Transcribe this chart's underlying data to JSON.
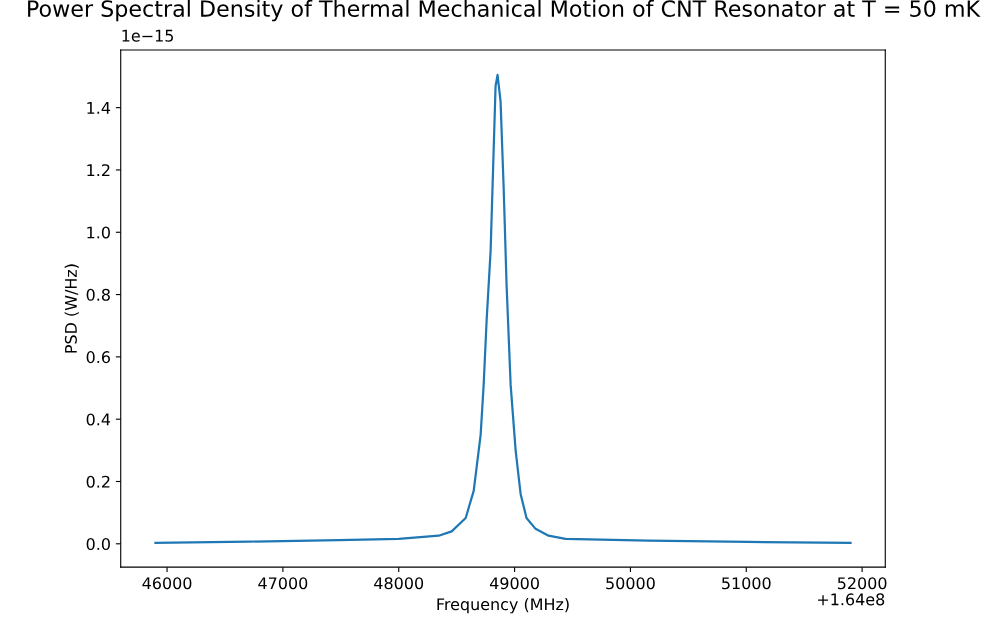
{
  "chart_data": {
    "type": "line",
    "title": "Power Spectral Density of Thermal Mechanical Motion of CNT Resonator at T = 50 mK",
    "xlabel": "Frequency (MHz)",
    "ylabel": "PSD (W/Hz)",
    "annotations": [
      "1e−15",
      "+1.64e8"
    ],
    "x": [
      45900,
      46710,
      47480,
      48000,
      48345,
      48457,
      48578,
      48647,
      48707,
      48733,
      48759,
      48793,
      48819,
      48836,
      48853,
      48879,
      48905,
      48931,
      48966,
      49009,
      49052,
      49103,
      49181,
      49293,
      49440,
      50155,
      51017,
      51900
    ],
    "series": [
      {
        "color": "#1f77b4",
        "values": [
          0.003,
          0.007,
          0.012,
          0.016,
          0.026,
          0.04,
          0.083,
          0.17,
          0.35,
          0.51,
          0.72,
          0.94,
          1.26,
          1.47,
          1.505,
          1.42,
          1.15,
          0.83,
          0.51,
          0.3,
          0.16,
          0.083,
          0.048,
          0.026,
          0.016,
          0.01,
          0.006,
          0.003
        ]
      }
    ],
    "xlim": [
      45600,
      52200
    ],
    "xticks": [
      46000,
      47000,
      48000,
      49000,
      50000,
      51000,
      52000
    ],
    "ylim": [
      -0.075,
      1.585
    ],
    "yticks": [
      {
        "value": 0,
        "label": "0.0"
      },
      0.2,
      0.4,
      0.6,
      0.8,
      {
        "value": 1,
        "label": "1.0"
      },
      1.2,
      1.4
    ],
    "grid": false,
    "marker": "none",
    "line_style": "solid"
  }
}
